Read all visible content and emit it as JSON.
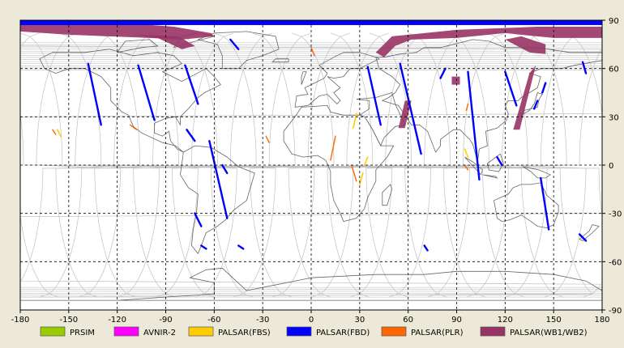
{
  "map": {
    "projection": "equirectangular",
    "lon_range": [
      -180,
      180
    ],
    "lat_range": [
      -90,
      90
    ],
    "grid": true,
    "grid_style": "dashed"
  },
  "axes": {
    "x_ticks": [
      "-180",
      "-150",
      "-120",
      "-90",
      "-60",
      "-30",
      "0",
      "30",
      "60",
      "90",
      "120",
      "150",
      "180"
    ],
    "x_tick_values": [
      -180,
      -150,
      -120,
      -90,
      -60,
      -30,
      0,
      30,
      60,
      90,
      120,
      150,
      180
    ],
    "y_ticks": [
      "90",
      "60",
      "30",
      "0",
      "-30",
      "-60",
      "-90"
    ],
    "y_tick_values": [
      90,
      60,
      30,
      0,
      -30,
      -60,
      -90
    ]
  },
  "legend": [
    {
      "key": "prism",
      "label": "PRSIM",
      "color": "#99cc00"
    },
    {
      "key": "avnir2",
      "label": "AVNIR-2",
      "color": "#ff00ff"
    },
    {
      "key": "palsar_fbs",
      "label": "PALSAR(FBS)",
      "color": "#ffcc00"
    },
    {
      "key": "palsar_fbd",
      "label": "PALSAR(FBD)",
      "color": "#0000ff"
    },
    {
      "key": "palsar_plr",
      "label": "PALSAR(PLR)",
      "color": "#ff6600"
    },
    {
      "key": "palsar_wb",
      "label": "PALSAR(WB1/WB2)",
      "color": "#993366"
    }
  ],
  "colors": {
    "background": "#ece9d8",
    "map_bg": "#ffffff",
    "coastline": "#666666",
    "orbit_track": "#c0c0c0",
    "grid": "#000000"
  },
  "observations": {
    "palsar_fbd": [
      [
        [
          -138,
          63
        ],
        [
          -130,
          25
        ]
      ],
      [
        [
          -107,
          62
        ],
        [
          -97,
          28
        ]
      ],
      [
        [
          -78,
          62
        ],
        [
          -70,
          38
        ]
      ],
      [
        [
          -77,
          22
        ],
        [
          -72,
          15
        ]
      ],
      [
        [
          -63,
          15
        ],
        [
          -52,
          -33
        ]
      ],
      [
        [
          -50,
          78
        ],
        [
          -45,
          72
        ]
      ],
      [
        [
          -55,
          0
        ],
        [
          -52,
          -5
        ]
      ],
      [
        [
          -72,
          -30
        ],
        [
          -68,
          -38
        ]
      ],
      [
        [
          -68,
          -50
        ],
        [
          -65,
          -52
        ]
      ],
      [
        [
          35,
          61
        ],
        [
          43,
          25
        ]
      ],
      [
        [
          55,
          63
        ],
        [
          68,
          7
        ]
      ],
      [
        [
          83,
          60
        ],
        [
          80,
          54
        ]
      ],
      [
        [
          97,
          58
        ],
        [
          104,
          -9
        ]
      ],
      [
        [
          120,
          58
        ],
        [
          127,
          37
        ]
      ],
      [
        [
          115,
          5
        ],
        [
          118,
          0
        ]
      ],
      [
        [
          142,
          -8
        ],
        [
          147,
          -40
        ]
      ],
      [
        [
          145,
          51
        ],
        [
          143,
          45
        ]
      ],
      [
        [
          140,
          40
        ],
        [
          138,
          35
        ]
      ],
      [
        [
          168,
          64
        ],
        [
          170,
          57
        ]
      ],
      [
        [
          166,
          -43
        ],
        [
          170,
          -47
        ]
      ],
      [
        [
          -45,
          -50
        ],
        [
          -42,
          -52
        ]
      ],
      [
        [
          70,
          -50
        ],
        [
          72,
          -53
        ]
      ]
    ],
    "palsar_wb_polys": [
      [
        [
          -180,
          88
        ],
        [
          -112,
          88
        ],
        [
          -85,
          86
        ],
        [
          -62,
          82
        ],
        [
          -60,
          80
        ],
        [
          -80,
          78
        ],
        [
          -100,
          79
        ],
        [
          -125,
          80
        ],
        [
          -150,
          81
        ],
        [
          -180,
          83
        ]
      ],
      [
        [
          -110,
          81
        ],
        [
          -95,
          79
        ],
        [
          -80,
          72
        ],
        [
          -72,
          74
        ],
        [
          -82,
          80
        ]
      ],
      [
        [
          40,
          70
        ],
        [
          50,
          80
        ],
        [
          90,
          84
        ],
        [
          140,
          86
        ],
        [
          180,
          86
        ],
        [
          180,
          79
        ],
        [
          150,
          79
        ],
        [
          120,
          82
        ],
        [
          90,
          79
        ],
        [
          62,
          78
        ],
        [
          52,
          74
        ],
        [
          45,
          67
        ]
      ],
      [
        [
          120,
          78
        ],
        [
          135,
          70
        ],
        [
          145,
          69
        ],
        [
          145,
          75
        ],
        [
          130,
          80
        ]
      ],
      [
        [
          135,
          57
        ],
        [
          139,
          62
        ],
        [
          129,
          22
        ],
        [
          125,
          22
        ]
      ],
      [
        [
          58,
          40
        ],
        [
          62,
          40
        ],
        [
          58,
          23
        ],
        [
          54,
          23
        ]
      ],
      [
        [
          87,
          55
        ],
        [
          92,
          55
        ],
        [
          92,
          50
        ],
        [
          87,
          50
        ]
      ]
    ],
    "palsar_plr": [
      [
        [
          0,
          73
        ],
        [
          2,
          68
        ]
      ],
      [
        [
          -160,
          22
        ],
        [
          -158,
          19
        ]
      ],
      [
        [
          -28,
          18
        ],
        [
          -26,
          14
        ]
      ],
      [
        [
          15,
          18
        ],
        [
          12,
          3
        ]
      ],
      [
        [
          25,
          0
        ],
        [
          28,
          -10
        ]
      ],
      [
        [
          97,
          38
        ],
        [
          96,
          34
        ]
      ],
      [
        [
          95,
          0
        ],
        [
          97,
          -3
        ]
      ],
      [
        [
          -112,
          25
        ],
        [
          -108,
          22
        ]
      ]
    ],
    "palsar_fbs": [
      [
        [
          28,
          32
        ],
        [
          26,
          23
        ]
      ],
      [
        [
          32,
          -5
        ],
        [
          30,
          -12
        ]
      ],
      [
        [
          35,
          5
        ],
        [
          33,
          0
        ]
      ],
      [
        [
          -157,
          22
        ],
        [
          -155,
          18
        ]
      ],
      [
        [
          95,
          10
        ],
        [
          97,
          5
        ]
      ]
    ]
  }
}
